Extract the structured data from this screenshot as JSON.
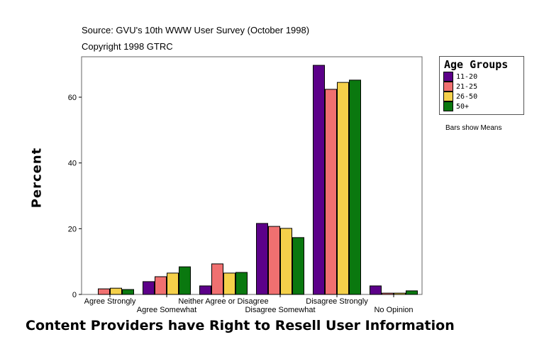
{
  "source": "Source: GVU's 10th WWW User Survey (October 1998)",
  "copyright": "Copyright 1998 GTRC",
  "note": "Bars show Means",
  "chart_data": {
    "type": "bar",
    "title": "",
    "xlabel": "Content Providers have Right to Resell User Information",
    "ylabel": "Percent",
    "ylim": [
      0,
      72
    ],
    "yticks": [
      0,
      20,
      40,
      60
    ],
    "grid": false,
    "legend_title": "Age Groups",
    "legend_position": "right",
    "categories": [
      "Agree Strongly",
      "Agree Somewhat",
      "Neither Agree or Disagree",
      "Disagree Somewhat",
      "Disagree Strongly",
      "No Opinion"
    ],
    "series": [
      {
        "name": "11-20",
        "color": "#5c0089",
        "values": [
          0,
          3.9,
          2.6,
          21.6,
          69.7,
          2.6
        ]
      },
      {
        "name": "21-25",
        "color": "#f07070",
        "values": [
          1.7,
          5.4,
          9.3,
          20.7,
          62.4,
          0.4
        ]
      },
      {
        "name": "26-50",
        "color": "#f5d04a",
        "values": [
          1.9,
          6.5,
          6.5,
          20.1,
          64.5,
          0.4
        ]
      },
      {
        "name": "50+",
        "color": "#0a780f",
        "values": [
          1.5,
          8.4,
          6.7,
          17.3,
          65.2,
          1.1
        ]
      }
    ]
  }
}
